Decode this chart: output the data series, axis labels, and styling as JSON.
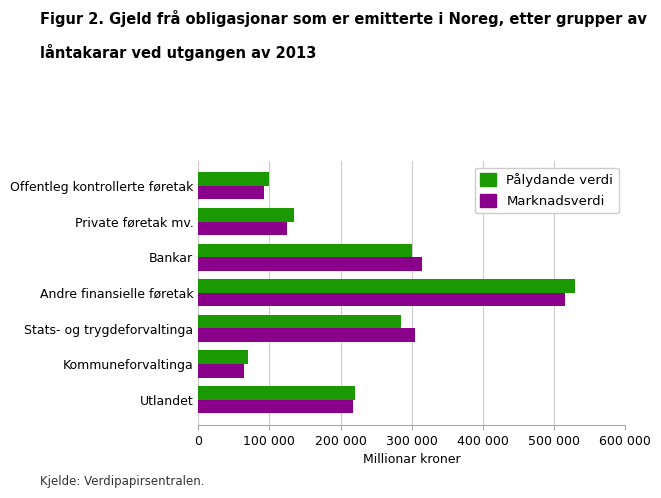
{
  "title_line1": "Figur 2. Gjeld frå obligasjonar som er emitterte i Noreg, etter grupper av",
  "title_line2": "låntakarar ved utgangen av 2013",
  "categories": [
    "Offentleg kontrollerte føretak",
    "Private føretak mv.",
    "Bankar",
    "Andre finansielle føretak",
    "Stats- og trygdeforvaltinga",
    "Kommuneforvaltinga",
    "Utlandet"
  ],
  "palydande_verdi": [
    100000,
    135000,
    300000,
    530000,
    285000,
    70000,
    220000
  ],
  "marknadsverdi": [
    93000,
    125000,
    315000,
    515000,
    305000,
    65000,
    218000
  ],
  "color_green": "#1a9a00",
  "color_purple": "#8b008b",
  "legend_labels": [
    "Pålydande verdi",
    "Marknadsverdi"
  ],
  "xlabel": "Millionar kroner",
  "xlim": [
    0,
    600000
  ],
  "xticks": [
    0,
    100000,
    200000,
    300000,
    400000,
    500000,
    600000
  ],
  "xtick_labels": [
    "0",
    "100 000",
    "200 000",
    "300 000",
    "400 000",
    "500 000",
    "600 000"
  ],
  "footer": "Kjelde: Verdipapirsentralen.",
  "title_fontsize": 10.5,
  "axis_fontsize": 9,
  "tick_fontsize": 9,
  "legend_fontsize": 9.5,
  "bar_height": 0.38,
  "grid_color": "#cccccc",
  "background_color": "#ffffff"
}
